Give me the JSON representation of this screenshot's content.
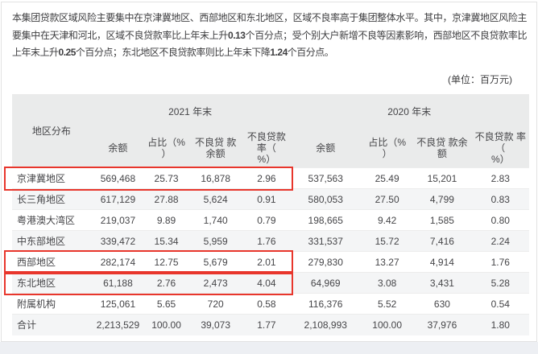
{
  "paragraph": {
    "segments": [
      {
        "text": "本集团贷款区域风险主要集中在京津冀地区、西部地区和东北地区，区域不良率高于集团整体水平。其中，京津冀地区风险主要集中在天津和河北，区域不良贷款率比上年末上升",
        "bold": false
      },
      {
        "text": "0.13",
        "bold": true
      },
      {
        "text": "个百分点；受个别大户新增不良等因素影响，西部地区不良贷款率比上年末上升",
        "bold": false
      },
      {
        "text": "0.25",
        "bold": true
      },
      {
        "text": "个百分点；东北地区不良贷款率则比上年末下降",
        "bold": false
      },
      {
        "text": "1.24",
        "bold": true
      },
      {
        "text": "个百分点。",
        "bold": false
      }
    ]
  },
  "unit_note": "(单位：百万元)",
  "table": {
    "region_header": "地区分布",
    "groups": [
      {
        "label": "2021 年末",
        "columns": [
          "余额",
          "占比（%\n）",
          "不良贷 款\n余额",
          "不良贷款 率（\n%）"
        ]
      },
      {
        "label": "2020 年末",
        "columns": [
          "余额",
          "占比（%\n）",
          "不良贷 款余\n额",
          "不良贷款 率（\n%）"
        ]
      }
    ],
    "rows": [
      {
        "region": "京津冀地区",
        "highlighted": true,
        "y2021": [
          "569,468",
          "25.73",
          "16,878",
          "2.96"
        ],
        "y2020": [
          "537,563",
          "25.49",
          "15,201",
          "2.83"
        ]
      },
      {
        "region": "长三角地区",
        "highlighted": false,
        "y2021": [
          "617,129",
          "27.88",
          "5,624",
          "0.91"
        ],
        "y2020": [
          "580,053",
          "27.50",
          "4,799",
          "0.83"
        ]
      },
      {
        "region": "粤港澳大湾区",
        "highlighted": false,
        "y2021": [
          "219,037",
          "9.89",
          "1,740",
          "0.79"
        ],
        "y2020": [
          "198,665",
          "9.42",
          "1,585",
          "0.80"
        ]
      },
      {
        "region": "中东部地区",
        "highlighted": false,
        "y2021": [
          "339,472",
          "15.34",
          "5,959",
          "1.76"
        ],
        "y2020": [
          "331,537",
          "15.72",
          "7,416",
          "2.24"
        ]
      },
      {
        "region": "西部地区",
        "highlighted": true,
        "y2021": [
          "282,174",
          "12.75",
          "5,679",
          "2.01"
        ],
        "y2020": [
          "279,830",
          "13.27",
          "4,914",
          "1.76"
        ]
      },
      {
        "region": "东北地区",
        "highlighted": true,
        "y2021": [
          "61,188",
          "2.76",
          "2,473",
          "4.04"
        ],
        "y2020": [
          "64,969",
          "3.08",
          "3,431",
          "5.28"
        ]
      },
      {
        "region": "附属机构",
        "highlighted": false,
        "y2021": [
          "125,061",
          "5.65",
          "720",
          "0.58"
        ],
        "y2020": [
          "116,376",
          "5.52",
          "630",
          "0.54"
        ]
      },
      {
        "region": "合计",
        "highlighted": false,
        "y2021": [
          "2,213,529",
          "100.00",
          "39,073",
          "1.77"
        ],
        "y2020": [
          "2,108,993",
          "100.00",
          "37,976",
          "1.80"
        ]
      }
    ]
  },
  "colors": {
    "highlight_border": "#e8362c",
    "header_bg": "#eaebeb",
    "stripe_bg": "#f4f5f6",
    "bottom_band": "#edeff3"
  }
}
